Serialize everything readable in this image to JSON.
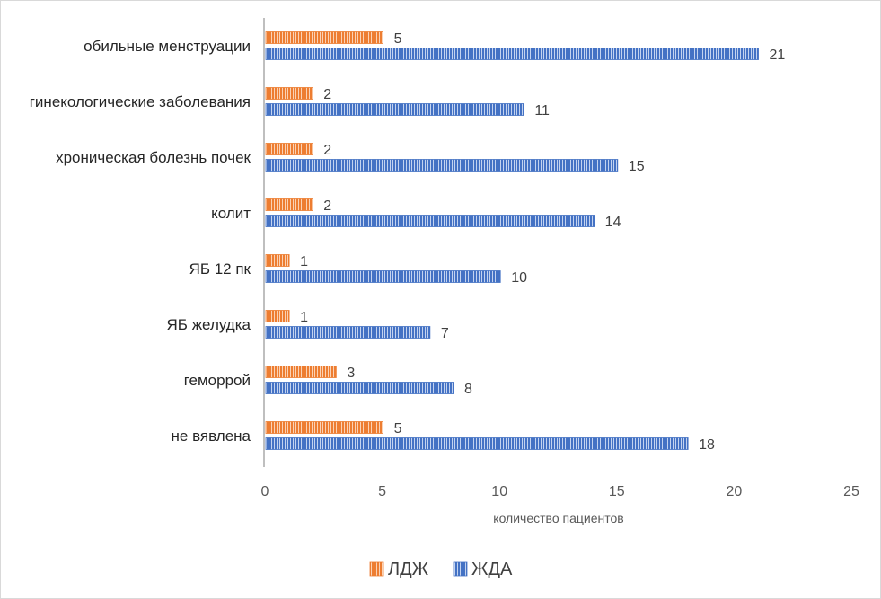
{
  "chart_data": {
    "type": "bar",
    "orientation": "horizontal",
    "categories": [
      "обильные менструации",
      "гинекологические заболевания",
      "хроническая болезнь почек",
      "колит",
      "ЯБ 12 пк",
      "ЯБ желудка",
      "геморрой",
      "не вявлена"
    ],
    "series": [
      {
        "name": "ЛДЖ",
        "values": [
          5,
          2,
          2,
          2,
          1,
          1,
          3,
          5
        ],
        "color": "#ed7d31"
      },
      {
        "name": "ЖДА",
        "values": [
          21,
          11,
          15,
          14,
          10,
          7,
          8,
          18
        ],
        "color": "#4472c4"
      }
    ],
    "xlabel": "количество пациентов",
    "ylabel": "",
    "xlim": [
      0,
      25
    ],
    "xticks": [
      "0",
      "5",
      "10",
      "15",
      "20",
      "25"
    ],
    "grid": false,
    "legend_position": "bottom",
    "bar_pattern": "vertical-stripes"
  }
}
